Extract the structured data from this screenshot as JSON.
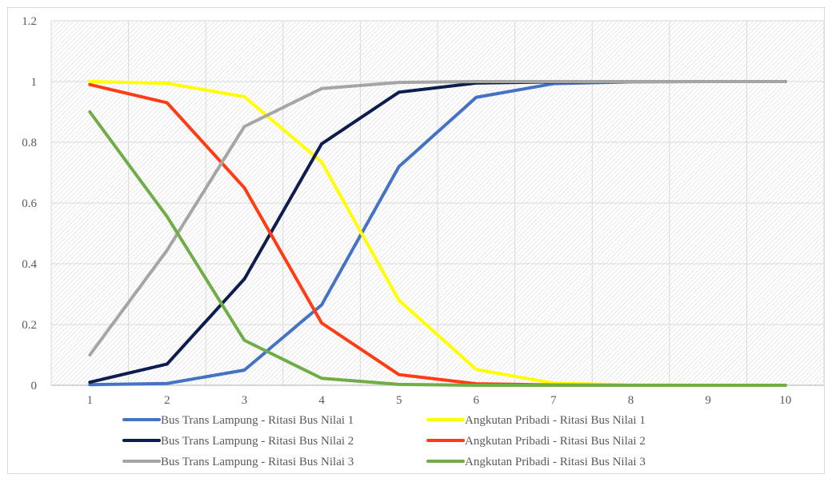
{
  "chart_data": {
    "type": "line",
    "title": "",
    "xlabel": "",
    "ylabel": "",
    "x": [
      1,
      2,
      3,
      4,
      5,
      6,
      7,
      8,
      9,
      10
    ],
    "ylim": [
      0,
      1.2
    ],
    "yticks": [
      "0",
      "0.2",
      "0.4",
      "0.6",
      "0.8",
      "1",
      "1.2"
    ],
    "xticks": [
      "1",
      "2",
      "3",
      "4",
      "5",
      "6",
      "7",
      "8",
      "9",
      "10"
    ],
    "grid": true,
    "legend_position": "bottom",
    "series": [
      {
        "name": "Bus Trans Lampung - Ritasi Bus Nilai 1",
        "color": "#4472C4",
        "values": [
          0.002,
          0.006,
          0.05,
          0.265,
          0.72,
          0.948,
          0.993,
          0.999,
          1.0,
          1.0
        ]
      },
      {
        "name": "Angkutan Pribadi - Ritasi Bus Nilai 1",
        "color": "#FFFF00",
        "values": [
          1.0,
          0.994,
          0.95,
          0.735,
          0.28,
          0.052,
          0.007,
          0.001,
          0.0,
          0.0
        ]
      },
      {
        "name": "Bus Trans Lampung - Ritasi Bus Nilai 2",
        "color": "#0D1D4F",
        "values": [
          0.01,
          0.07,
          0.35,
          0.795,
          0.965,
          0.995,
          0.999,
          1.0,
          1.0,
          1.0
        ]
      },
      {
        "name": "Angkutan Pribadi - Ritasi Bus Nilai 2",
        "color": "#FF3C14",
        "values": [
          0.99,
          0.93,
          0.65,
          0.205,
          0.035,
          0.005,
          0.001,
          0.0,
          0.0,
          0.0
        ]
      },
      {
        "name": "Bus Trans Lampung - Ritasi Bus Nilai 3",
        "color": "#A5A5A5",
        "values": [
          0.1,
          0.445,
          0.852,
          0.977,
          0.997,
          1.0,
          1.0,
          1.0,
          1.0,
          1.0
        ]
      },
      {
        "name": "Angkutan Pribadi - Ritasi Bus Nilai 3",
        "color": "#70AD47",
        "values": [
          0.9,
          0.555,
          0.148,
          0.023,
          0.003,
          0.0,
          0.0,
          0.0,
          0.0,
          0.0
        ]
      }
    ]
  }
}
